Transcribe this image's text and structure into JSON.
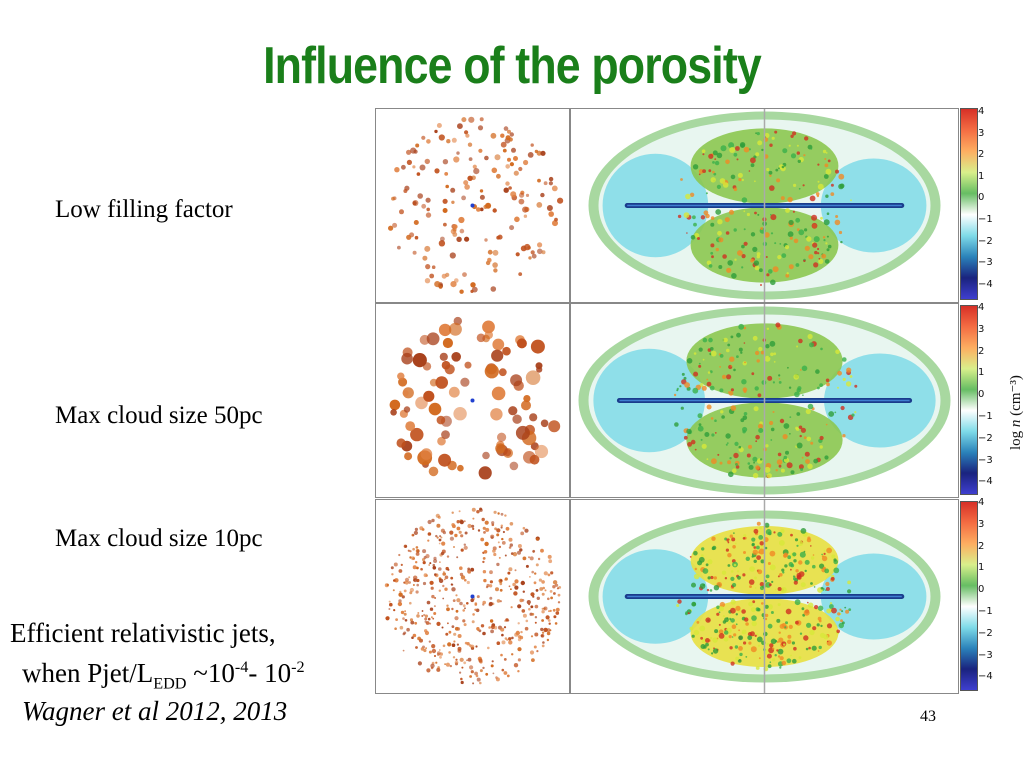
{
  "title": "Influence of the porosity",
  "rows": [
    {
      "label": "Low filling factor"
    },
    {
      "label": "Max cloud size 50pc"
    },
    {
      "label": "Max cloud size 10pc"
    }
  ],
  "footer": {
    "line1": "Efficient relativistic jets,",
    "line2_prefix": "when Pjet/L",
    "line2_sub": "EDD",
    "line2_mid": " ~10",
    "line2_exp1": "-4",
    "line2_dash": "- 10",
    "line2_exp2": "-2",
    "line3": "Wagner et al 2012, 2013"
  },
  "slide_number": "43",
  "colorbar": {
    "ticks": [
      "4",
      "3",
      "2",
      "1",
      "0",
      "−1",
      "−2",
      "−3",
      "−4"
    ],
    "label_prefix": "log ",
    "label_var": "n",
    "label_unit": " (cm⁻³)",
    "colors": [
      "#d73027",
      "#f46d43",
      "#fdae61",
      "#d9ef8b",
      "#66bd63",
      "#ffffff",
      "#7fdbe8",
      "#2b83ba",
      "#1a237e",
      "#3f3fd0"
    ]
  }
}
